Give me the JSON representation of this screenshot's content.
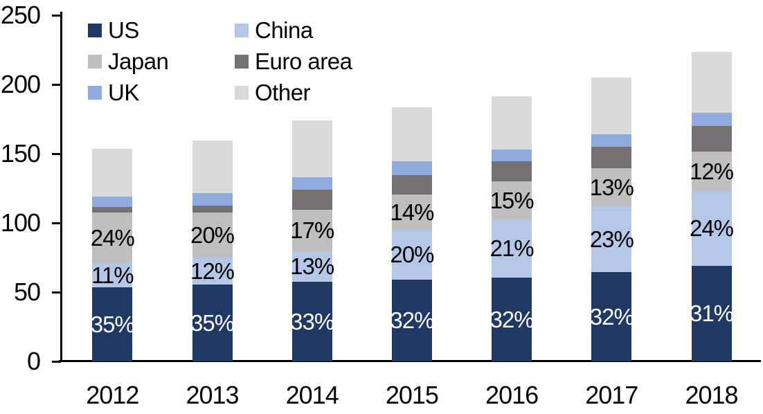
{
  "chart_data": {
    "type": "bar",
    "stacked": true,
    "title": "",
    "xlabel": "",
    "ylabel": "",
    "categories": [
      "2012",
      "2013",
      "2014",
      "2015",
      "2016",
      "2017",
      "2018"
    ],
    "y_axis": {
      "min": 0,
      "max": 250,
      "ticks": [
        "0",
        "50",
        "100",
        "150",
        "200",
        "250"
      ]
    },
    "grid": "off",
    "legend_position": "top-left",
    "series": [
      {
        "name": "US",
        "color": "#1F3864",
        "label_color": "#FFFFFF",
        "values": [
          53.5,
          55.5,
          57.5,
          59,
          60.5,
          64.5,
          69
        ],
        "segment_labels": [
          "35%",
          "35%",
          "33%",
          "32%",
          "32%",
          "32%",
          "31%"
        ]
      },
      {
        "name": "China",
        "color": "#B4C7E7",
        "label_color": "#000000",
        "values": [
          17.5,
          19.5,
          22,
          36,
          42,
          47.5,
          54
        ],
        "segment_labels": [
          "11%",
          "12%",
          "13%",
          "20%",
          "21%",
          "23%",
          "24%"
        ]
      },
      {
        "name": "Japan",
        "color": "#BFBFBF",
        "label_color": "#000000",
        "values": [
          36.5,
          32.5,
          30,
          25.5,
          27.5,
          27.5,
          28.5
        ],
        "segment_labels": [
          "24%",
          "20%",
          "17%",
          "14%",
          "15%",
          "13%",
          "12%"
        ]
      },
      {
        "name": "Euro area",
        "color": "#767171",
        "values": [
          4,
          5,
          14.5,
          14,
          14.5,
          15.5,
          18.5
        ]
      },
      {
        "name": "UK",
        "color": "#8FAADC",
        "values": [
          7.5,
          9,
          9,
          10,
          8.5,
          9,
          9.5
        ]
      },
      {
        "name": "Other",
        "color": "#D9D9D9",
        "values": [
          34.5,
          38,
          41,
          39,
          38.5,
          41,
          44
        ]
      }
    ],
    "totals": [
      153.5,
      159.5,
      174,
      183.5,
      191.5,
      205,
      223.5
    ]
  }
}
